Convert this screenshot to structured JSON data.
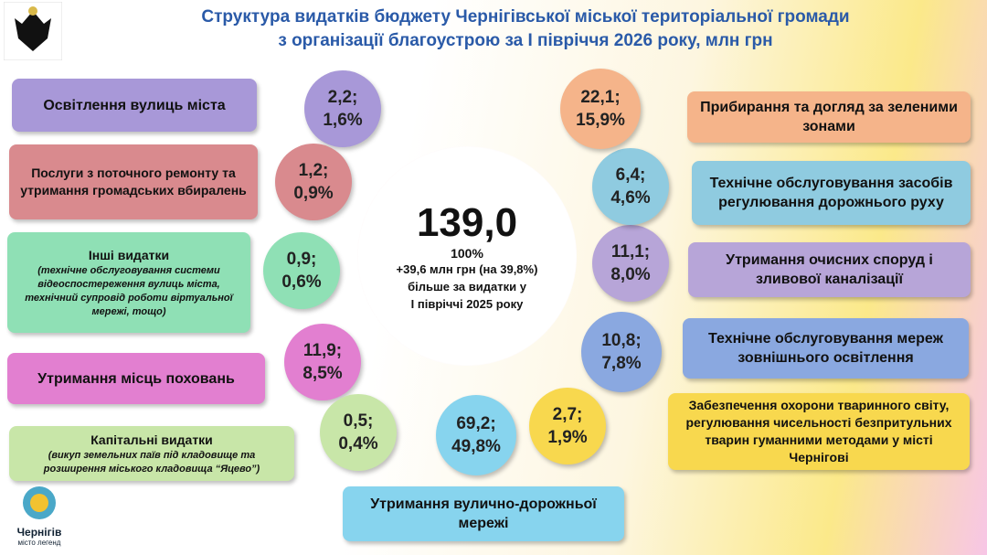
{
  "header": {
    "title_lines": [
      "Структура видатків бюджету Чернігівської міської територіальної громади",
      "з організації благоустрою за І півріччя 2026 року, млн грн"
    ]
  },
  "center": {
    "total": "139,0",
    "share": "100%",
    "lines": [
      "+39,6 млн грн (на 39,8%)",
      "більше за видатки у",
      "І півріччі 2025 року"
    ]
  },
  "items": [
    {
      "label": "Освітлення вулиць міста",
      "value": "2,2;",
      "share": "1,6%"
    },
    {
      "label": "Послуги з поточного ремонту та утримання громадських вбиралень",
      "value": "1,2;",
      "share": "0,9%"
    },
    {
      "label": "Інші видатки",
      "note": "(технічне обслуговування системи відеоспостереження вулиць міста, технічний супровід роботи віртуальної мережі, тощо)",
      "value": "0,9;",
      "share": "0,6%"
    },
    {
      "label": "Утримання місць поховань",
      "value": "11,9;",
      "share": "8,5%"
    },
    {
      "label": "Капітальні видатки",
      "note": "(викуп земельних паїв під кладовище та розширення міського кладовища “Яцево”)",
      "value": "0,5;",
      "share": "0,4%"
    },
    {
      "label": "Утримання вулично-дорожньої мережі",
      "value": "69,2;",
      "share": "49,8%"
    },
    {
      "label": "Забезпечення охорони тваринного світу, регулювання чисельності безпритульних тварин гуманними методами у місті Чернігові",
      "value": "2,7;",
      "share": "1,9%"
    },
    {
      "label": "Технічне обслуговування мереж зовнішнього освітлення",
      "value": "10,8;",
      "share": "7,8%"
    },
    {
      "label": "Утримання очисних споруд і зливової каналізації",
      "value": "11,1;",
      "share": "8,0%"
    },
    {
      "label": "Технічне обслуговування засобів регулювання дорожнього руху",
      "value": "6,4;",
      "share": "4,6%"
    },
    {
      "label": "Прибирання та догляд за зеленими зонами",
      "value": "22,1;",
      "share": "15,9%"
    }
  ],
  "logo": {
    "name": "Чернігів",
    "tagline": "місто легенд"
  }
}
